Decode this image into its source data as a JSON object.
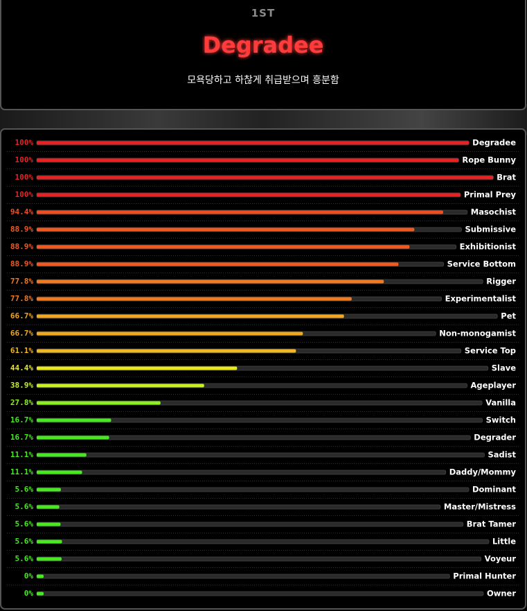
{
  "header": {
    "rank": "1ST",
    "title": "Degradee",
    "subtitle": "모욕당하고 하찮게 취급받으며 흥분함"
  },
  "chart_data": {
    "type": "bar",
    "categories": [
      "Degradee",
      "Rope Bunny",
      "Brat",
      "Primal Prey",
      "Masochist",
      "Submissive",
      "Exhibitionist",
      "Service Bottom",
      "Rigger",
      "Experimentalist",
      "Pet",
      "Non-monogamist",
      "Service Top",
      "Slave",
      "Ageplayer",
      "Vanilla",
      "Switch",
      "Degrader",
      "Sadist",
      "Daddy/Mommy",
      "Dominant",
      "Master/Mistress",
      "Brat Tamer",
      "Little",
      "Voyeur",
      "Primal Hunter",
      "Owner"
    ],
    "values": [
      100,
      100,
      100,
      100,
      94.4,
      88.9,
      88.9,
      88.9,
      77.8,
      77.8,
      66.7,
      66.7,
      61.1,
      44.4,
      38.9,
      27.8,
      16.7,
      16.7,
      11.1,
      11.1,
      5.6,
      5.6,
      5.6,
      5.6,
      5.6,
      0,
      0
    ],
    "value_labels": [
      "100%",
      "100%",
      "100%",
      "100%",
      "94.4%",
      "88.9%",
      "88.9%",
      "88.9%",
      "77.8%",
      "77.8%",
      "66.7%",
      "66.7%",
      "61.1%",
      "44.4%",
      "38.9%",
      "27.8%",
      "16.7%",
      "16.7%",
      "11.1%",
      "11.1%",
      "5.6%",
      "5.6%",
      "5.6%",
      "5.6%",
      "5.6%",
      "0%",
      "0%"
    ],
    "colors": [
      "#e82222",
      "#e82222",
      "#e82222",
      "#e82222",
      "#f04e22",
      "#f05a22",
      "#f05a22",
      "#f05a22",
      "#f07a22",
      "#f07a22",
      "#f0a822",
      "#f0a822",
      "#f0b822",
      "#e8e822",
      "#c8f022",
      "#8cf022",
      "#48e822",
      "#48e822",
      "#48e822",
      "#48e822",
      "#48e822",
      "#48e822",
      "#48e822",
      "#48e822",
      "#48e822",
      "#48e822",
      "#48e822"
    ],
    "xlim": [
      0,
      100
    ]
  }
}
